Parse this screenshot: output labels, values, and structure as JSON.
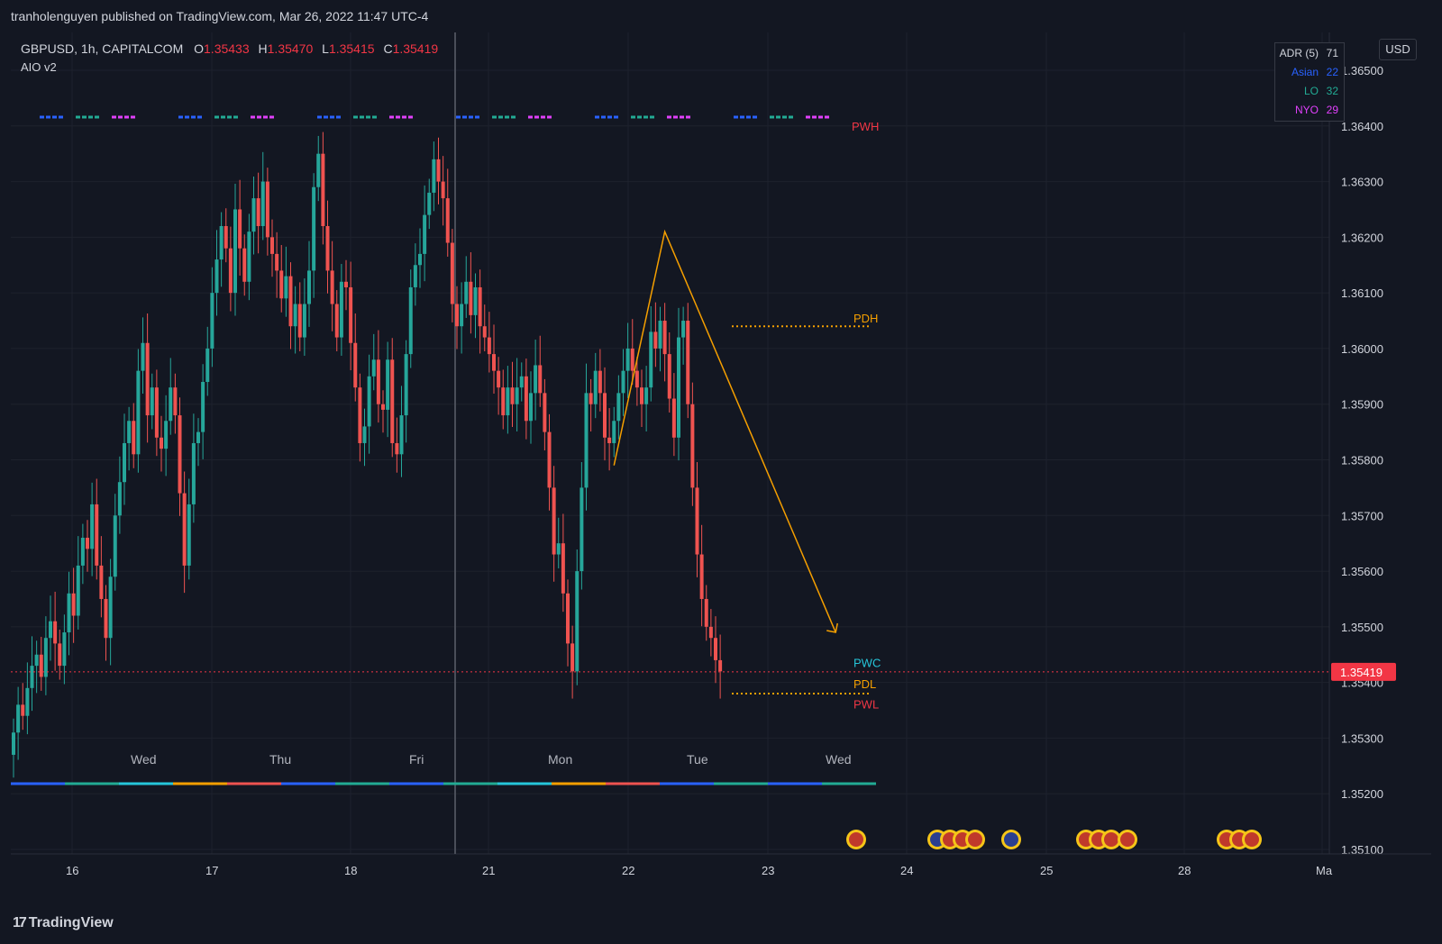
{
  "header": {
    "published_text": "tranholenguyen published on TradingView.com, Mar 26, 2022 11:47 UTC-4"
  },
  "symbol_line": {
    "symbol": "GBPUSD, 1h, CAPITALCOM",
    "o_label": "O",
    "o_value": "1.35433",
    "h_label": "H",
    "h_value": "1.35470",
    "l_label": "L",
    "l_value": "1.35415",
    "c_label": "C",
    "c_value": "1.35419"
  },
  "indicator": {
    "name": "AIO v2"
  },
  "adr_table": {
    "rows": [
      {
        "label": "ADR (5)",
        "value": "71",
        "color": "#d1d4dc"
      },
      {
        "label": "Asian",
        "value": "22",
        "color": "#2962ff"
      },
      {
        "label": "LO",
        "value": "32",
        "color": "#22ab94"
      },
      {
        "label": "NYO",
        "value": "29",
        "color": "#e040fb"
      }
    ]
  },
  "currency_button": "USD",
  "footer": {
    "logo_mark": "17",
    "logo_text": "TradingView"
  },
  "colors": {
    "up": "#26a69a",
    "down": "#ef5350",
    "background": "#131722",
    "grid": "#1e222d",
    "projection": "#f59f00",
    "price_tag": "#f23645"
  },
  "chart_data": {
    "type": "candlestick",
    "symbol": "GBPUSD",
    "timeframe": "1h",
    "current_price": 1.35419,
    "ylim": [
      1.351,
      1.3658
    ],
    "y_ticks": [
      1.351,
      1.352,
      1.353,
      1.354,
      1.355,
      1.356,
      1.357,
      1.358,
      1.359,
      1.36,
      1.361,
      1.362,
      1.363,
      1.364,
      1.365
    ],
    "y_tick_labels": [
      "1.35100",
      "1.35200",
      "1.35300",
      "1.35400",
      "1.35500",
      "1.35600",
      "1.35700",
      "1.35800",
      "1.35900",
      "1.36000",
      "1.36100",
      "1.36200",
      "1.36300",
      "1.36400",
      "1.36500"
    ],
    "x_date_labels": [
      "16",
      "17",
      "18",
      "21",
      "22",
      "23",
      "24",
      "25",
      "28",
      "Ma"
    ],
    "day_labels": [
      "Wed",
      "Thu",
      "Fri",
      "Mon",
      "Tue",
      "Wed"
    ],
    "levels": [
      {
        "label": "PWH",
        "price": 1.3641,
        "color": "#f23645"
      },
      {
        "label": "PDH",
        "price": 1.3604,
        "color": "#f59f00"
      },
      {
        "label": "PWC",
        "price": 1.3542,
        "color": "#26c6da"
      },
      {
        "label": "PDL",
        "price": 1.3538,
        "color": "#f59f00"
      },
      {
        "label": "PWL",
        "price": 1.3536,
        "color": "#f23645"
      }
    ],
    "projection": {
      "points": [
        {
          "bar": 130,
          "price": 1.3579
        },
        {
          "bar": 141,
          "price": 1.3621
        },
        {
          "bar": 178,
          "price": 1.3549
        }
      ]
    },
    "bars_per_day": 24,
    "closes": [
      1.3531,
      1.3536,
      1.3534,
      1.3539,
      1.3543,
      1.3545,
      1.3541,
      1.3548,
      1.3551,
      1.3547,
      1.3543,
      1.3549,
      1.3556,
      1.3552,
      1.3561,
      1.3566,
      1.3564,
      1.3572,
      1.3561,
      1.3555,
      1.3548,
      1.3559,
      1.357,
      1.3576,
      1.3583,
      1.3587,
      1.3581,
      1.3596,
      1.3601,
      1.3588,
      1.3593,
      1.3584,
      1.3582,
      1.3587,
      1.3593,
      1.3588,
      1.3574,
      1.3561,
      1.3572,
      1.3583,
      1.3585,
      1.3594,
      1.36,
      1.361,
      1.3616,
      1.3622,
      1.3618,
      1.361,
      1.3625,
      1.3618,
      1.3612,
      1.3621,
      1.3627,
      1.3622,
      1.363,
      1.362,
      1.3617,
      1.3614,
      1.3609,
      1.3613,
      1.3604,
      1.3608,
      1.3602,
      1.3608,
      1.3614,
      1.3629,
      1.3635,
      1.3622,
      1.3614,
      1.3608,
      1.3602,
      1.3612,
      1.3611,
      1.3601,
      1.3593,
      1.3583,
      1.3586,
      1.3595,
      1.3598,
      1.359,
      1.3589,
      1.3598,
      1.3583,
      1.3581,
      1.3588,
      1.3599,
      1.3611,
      1.3615,
      1.3617,
      1.3624,
      1.3628,
      1.3634,
      1.363,
      1.3627,
      1.3619,
      1.3608,
      1.3604,
      1.3608,
      1.3612,
      1.3606,
      1.3611,
      1.3604,
      1.3602,
      1.3599,
      1.3596,
      1.3593,
      1.3588,
      1.3593,
      1.359,
      1.3593,
      1.3595,
      1.3587,
      1.3592,
      1.3597,
      1.3592,
      1.3585,
      1.3575,
      1.3563,
      1.3565,
      1.3556,
      1.3547,
      1.3542,
      1.356,
      1.3575,
      1.3592,
      1.359,
      1.3596,
      1.3592,
      1.3584,
      1.3583,
      1.3587,
      1.3592,
      1.3596,
      1.36,
      1.3596,
      1.3593,
      1.359,
      1.3593,
      1.3603,
      1.36,
      1.3605,
      1.3599,
      1.3591,
      1.3584,
      1.3602,
      1.3605,
      1.359,
      1.3575,
      1.3563,
      1.3555,
      1.355,
      1.3548,
      1.3544,
      1.3542
    ]
  }
}
